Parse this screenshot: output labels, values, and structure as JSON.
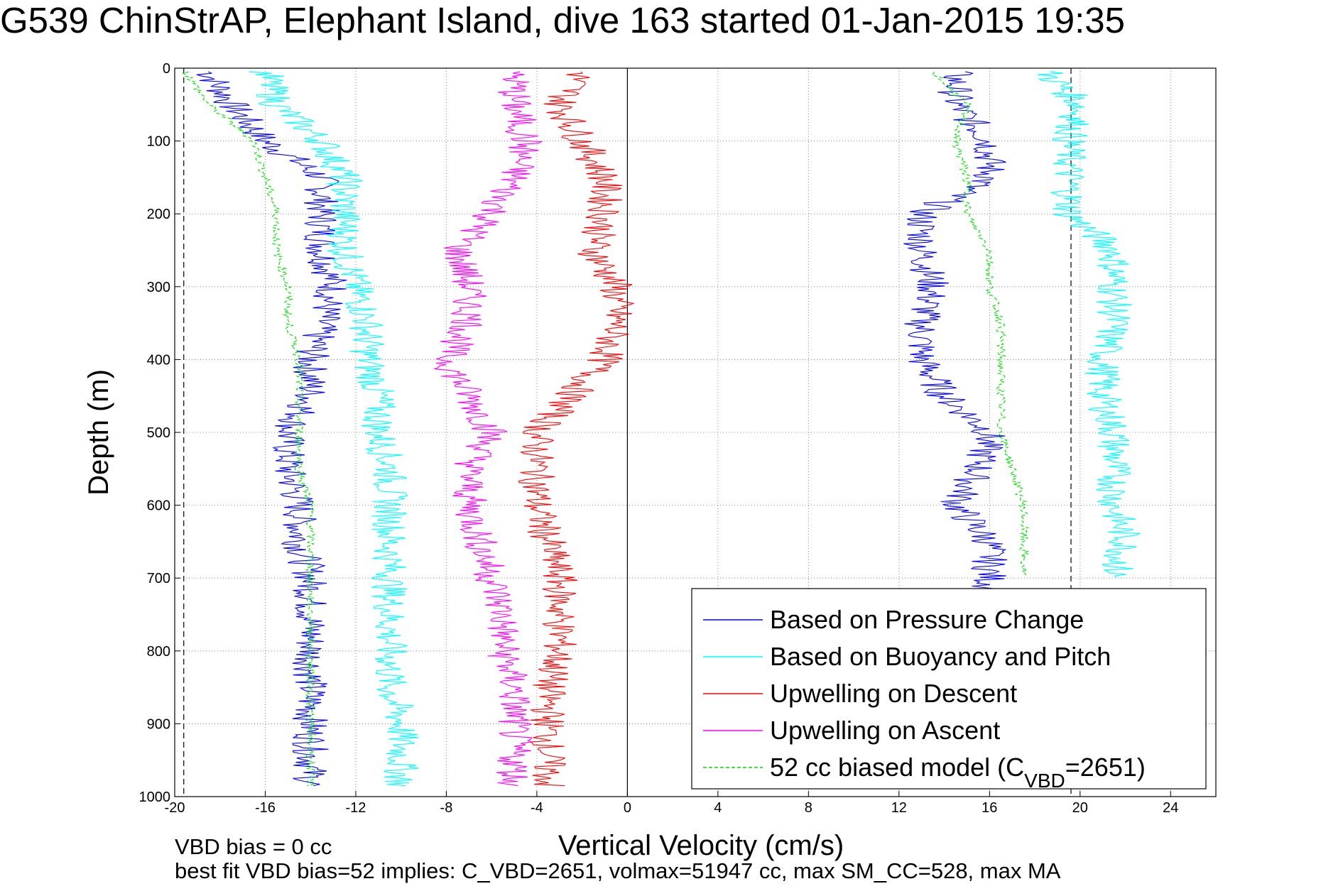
{
  "chart_data": {
    "type": "line",
    "title": "G539 ChinStrAP, Elephant Island, dive 163 started 01-Jan-2015 19:35",
    "xlabel": "Vertical Velocity (cm/s)",
    "ylabel": "Depth (m)",
    "xlim": [
      -20,
      26
    ],
    "ylim": [
      0,
      1000
    ],
    "y_reversed": true,
    "grid": true,
    "x_ticks": [
      -20,
      -16,
      -12,
      -8,
      -4,
      0,
      4,
      8,
      12,
      16,
      20,
      24
    ],
    "y_ticks": [
      0,
      100,
      200,
      300,
      400,
      500,
      600,
      700,
      800,
      900,
      1000
    ],
    "reference_lines": {
      "zero_x": 0,
      "dashed_x": [
        -19.6,
        19.6
      ]
    },
    "legend_position": "bottom-right",
    "footnotes": [
      "VBD bias = 0 cc",
      "best fit VBD bias=52 implies: C_VBD=2651, volmax=51947 cc, max SM_CC=528, max MA"
    ],
    "series": [
      {
        "name": "Based on Pressure Change",
        "color": "#0000ff",
        "style": "solid",
        "descent": {
          "depth": [
            5,
            50,
            100,
            150,
            200,
            250,
            300,
            350,
            400,
            450,
            500,
            550,
            600,
            650,
            700,
            750,
            800,
            850,
            900,
            950,
            985
          ],
          "velocity": [
            -18.5,
            -17.5,
            -16,
            -13.5,
            -13.5,
            -13.5,
            -13,
            -13.5,
            -14,
            -14,
            -15,
            -15,
            -14.5,
            -14.5,
            -14,
            -14,
            -14,
            -14,
            -14,
            -14,
            -14
          ]
        },
        "ascent": {
          "depth": [
            5,
            50,
            100,
            150,
            200,
            250,
            300,
            350,
            400,
            450,
            500,
            550,
            600,
            650,
            700,
            720
          ],
          "velocity": [
            14.5,
            14.5,
            16,
            16,
            13,
            13,
            13.5,
            13,
            13,
            14,
            16,
            15.5,
            14.5,
            16,
            16,
            16
          ]
        }
      },
      {
        "name": "Based on Buoyancy and Pitch",
        "color": "#00ffff",
        "style": "solid",
        "descent": {
          "depth": [
            5,
            50,
            100,
            150,
            200,
            250,
            300,
            350,
            400,
            450,
            500,
            550,
            600,
            650,
            700,
            750,
            800,
            850,
            900,
            950,
            985
          ],
          "velocity": [
            -16,
            -15.5,
            -13.5,
            -12.5,
            -12.5,
            -12.5,
            -12,
            -11.5,
            -11.5,
            -11,
            -11,
            -10.5,
            -10.5,
            -10.5,
            -10.5,
            -10.5,
            -10.5,
            -10.5,
            -10,
            -10,
            -10
          ]
        },
        "ascent": {
          "depth": [
            5,
            50,
            100,
            150,
            200,
            250,
            300,
            350,
            400,
            450,
            500,
            550,
            600,
            650,
            700
          ],
          "velocity": [
            18.5,
            20,
            19.5,
            19.5,
            19.5,
            21.5,
            21.5,
            21.5,
            21,
            21,
            21.5,
            21.5,
            21.5,
            22,
            21.5
          ]
        }
      },
      {
        "name": "Upwelling on Descent",
        "color": "#ff0000",
        "style": "solid",
        "depth": [
          5,
          50,
          100,
          150,
          200,
          250,
          300,
          350,
          400,
          450,
          500,
          550,
          600,
          650,
          700,
          750,
          800,
          850,
          900,
          950,
          985
        ],
        "velocity": [
          -2,
          -3,
          -2,
          -1,
          -1,
          -1.5,
          -0.5,
          -0.5,
          -1,
          -2.5,
          -4,
          -4,
          -4,
          -3.5,
          -3,
          -3,
          -3,
          -3.5,
          -3.5,
          -3.5,
          -3.5
        ]
      },
      {
        "name": "Upwelling on Ascent",
        "color": "#ff00ff",
        "style": "solid",
        "depth": [
          5,
          50,
          100,
          150,
          200,
          250,
          300,
          350,
          400,
          450,
          500,
          550,
          600,
          650,
          700,
          750,
          800,
          850,
          900,
          950,
          985
        ],
        "velocity": [
          -5,
          -5,
          -4.5,
          -5,
          -6,
          -7.5,
          -7,
          -7,
          -8,
          -7,
          -6,
          -7,
          -7,
          -6.5,
          -6,
          -5.5,
          -5.5,
          -5,
          -5,
          -5,
          -5
        ]
      },
      {
        "name": "52 cc biased model (C",
        "name_subscript": "VBD",
        "name_suffix": "=2651)",
        "color": "#00dd00",
        "style": "dashed",
        "descent": {
          "depth": [
            5,
            50,
            100,
            150,
            200,
            250,
            300,
            350,
            400,
            450,
            500,
            550,
            600,
            650,
            700,
            750,
            800,
            850,
            900,
            950,
            985
          ],
          "velocity": [
            -19.5,
            -18.5,
            -16.5,
            -16,
            -15.5,
            -15.5,
            -15,
            -15,
            -14.5,
            -14.5,
            -14.5,
            -14.5,
            -14,
            -14,
            -14,
            -14,
            -14,
            -14,
            -14,
            -14,
            -14
          ]
        },
        "ascent": {
          "depth": [
            5,
            50,
            100,
            150,
            200,
            250,
            300,
            350,
            400,
            450,
            500,
            550,
            600,
            650,
            700
          ],
          "velocity": [
            13.5,
            15,
            14.5,
            15,
            15,
            16,
            16,
            16.5,
            16.5,
            16.5,
            16.5,
            17,
            17.5,
            17.5,
            17.5
          ]
        }
      }
    ]
  }
}
